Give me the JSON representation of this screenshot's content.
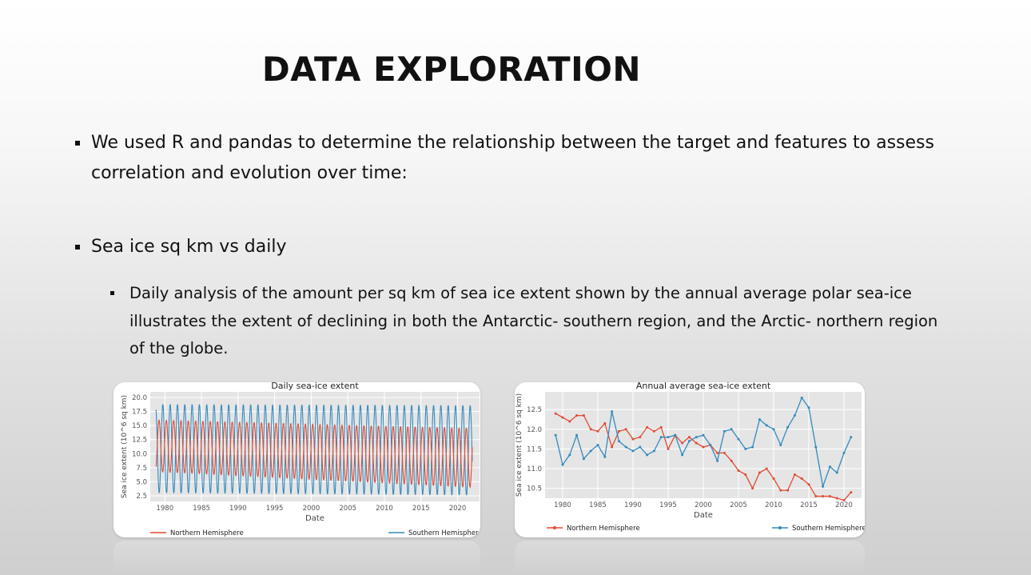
{
  "slide": {
    "title": "DATA EXPLORATION",
    "bullet1": "We used R and pandas to determine the relationship between the target and features to assess correlation and evolution over time:",
    "bullet2": "Sea ice sq km vs daily",
    "bullet3": "Daily analysis of the amount per sq km of sea ice extent shown by the annual average polar sea-ice illustrates the extent of declining in both the Antarctic- southern region, and the Arctic- northern region of the globe."
  },
  "colors": {
    "northern": "#e24a33",
    "southern": "#348abd",
    "plot_bg": "#e5e5e5",
    "grid": "#ffffff"
  },
  "chart_data": [
    {
      "type": "line",
      "title": "Daily sea-ice extent",
      "xlabel": "Date",
      "ylabel": "Sea ice extent (10^6 sq km)",
      "xlim": [
        1978,
        2023
      ],
      "ylim": [
        1.5,
        21
      ],
      "xticks": [
        1980,
        1985,
        1990,
        1995,
        2000,
        2005,
        2010,
        2015,
        2020
      ],
      "yticks": [
        "2.5",
        "5.0",
        "7.5",
        "10.0",
        "12.5",
        "15.0",
        "17.5",
        "20.0"
      ],
      "ytick_values": [
        2.5,
        5.0,
        7.5,
        10.0,
        12.5,
        15.0,
        17.5,
        20.0
      ],
      "x_start": 1978.8,
      "x_end": 2022.0,
      "grid": true,
      "legend_position": "bottom",
      "series": [
        {
          "name": "Northern Hemisphere",
          "seasonal_min": [
            6.8,
            4.0
          ],
          "seasonal_max": [
            16.0,
            14.5
          ],
          "peak_month_fraction": 0.2
        },
        {
          "name": "Southern Hemisphere",
          "seasonal_min": [
            3.0,
            2.6
          ],
          "seasonal_max": [
            18.8,
            18.6
          ],
          "peak_month_fraction": 0.72
        }
      ]
    },
    {
      "type": "line",
      "title": "Annual average sea-ice extent",
      "xlabel": "Date",
      "ylabel": "Sea ice extent (10^6 sq km)",
      "xlim": [
        1977.5,
        2022.5
      ],
      "ylim": [
        10.25,
        12.95
      ],
      "xticks": [
        1980,
        1985,
        1990,
        1995,
        2000,
        2005,
        2010,
        2015,
        2020
      ],
      "yticks": [
        "10.5",
        "11.0",
        "11.5",
        "12.0",
        "12.5"
      ],
      "ytick_values": [
        10.5,
        11.0,
        11.5,
        12.0,
        12.5
      ],
      "grid": true,
      "legend_position": "bottom",
      "x": [
        1979,
        1980,
        1981,
        1982,
        1983,
        1984,
        1985,
        1986,
        1987,
        1988,
        1989,
        1990,
        1991,
        1992,
        1993,
        1994,
        1995,
        1996,
        1997,
        1998,
        1999,
        2000,
        2001,
        2002,
        2003,
        2004,
        2005,
        2006,
        2007,
        2008,
        2009,
        2010,
        2011,
        2012,
        2013,
        2014,
        2015,
        2016,
        2017,
        2018,
        2019,
        2020,
        2021
      ],
      "series": [
        {
          "name": "Northern Hemisphere",
          "values": [
            12.4,
            12.3,
            12.2,
            12.35,
            12.35,
            12.0,
            11.95,
            12.15,
            11.55,
            11.95,
            12.0,
            11.75,
            11.8,
            12.05,
            11.95,
            12.05,
            11.5,
            11.85,
            11.65,
            11.8,
            11.65,
            11.55,
            11.6,
            11.4,
            11.4,
            11.2,
            10.95,
            10.85,
            10.5,
            10.9,
            11.0,
            10.75,
            10.45,
            10.45,
            10.85,
            10.75,
            10.6,
            10.3,
            10.3,
            10.3,
            10.25,
            10.2,
            10.4
          ]
        },
        {
          "name": "Southern Hemisphere",
          "values": [
            11.85,
            11.1,
            11.35,
            11.85,
            11.25,
            11.45,
            11.6,
            11.3,
            12.45,
            11.7,
            11.55,
            11.45,
            11.55,
            11.35,
            11.45,
            11.8,
            11.8,
            11.85,
            11.35,
            11.7,
            11.8,
            11.85,
            11.6,
            11.2,
            11.95,
            12.0,
            11.75,
            11.5,
            11.55,
            12.25,
            12.1,
            12.0,
            11.6,
            12.05,
            12.35,
            12.8,
            12.55,
            11.55,
            10.55,
            11.05,
            10.9,
            11.4,
            11.8
          ]
        }
      ]
    }
  ]
}
